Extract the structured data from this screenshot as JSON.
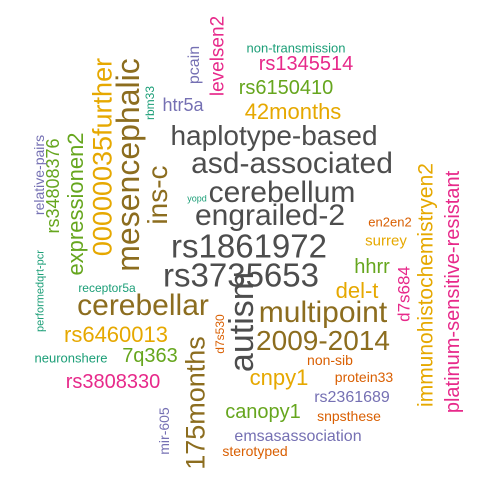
{
  "colors": {
    "gray": "#4d4d4d",
    "brown": "#8c6d1f",
    "gold": "#e6a800",
    "green": "#66a61e",
    "magenta": "#e7298a",
    "orange": "#d95f02",
    "purple": "#7570b3",
    "teal": "#1b9e77"
  },
  "words": [
    {
      "text": "autism",
      "color": "gray",
      "orientation": "vertical"
    },
    {
      "text": "rs3735653",
      "color": "gray",
      "orientation": "horizontal"
    },
    {
      "text": "rs1861972",
      "color": "gray",
      "orientation": "horizontal"
    },
    {
      "text": "engrailed-2",
      "color": "gray",
      "orientation": "horizontal"
    },
    {
      "text": "cerebellum",
      "color": "gray",
      "orientation": "horizontal"
    },
    {
      "text": "asd-associated",
      "color": "gray",
      "orientation": "horizontal"
    },
    {
      "text": "haplotype-based",
      "color": "gray",
      "orientation": "horizontal"
    },
    {
      "text": "mesencephalic",
      "color": "brown",
      "orientation": "vertical"
    },
    {
      "text": "multipoint",
      "color": "brown",
      "orientation": "horizontal"
    },
    {
      "text": "2009-2014",
      "color": "brown",
      "orientation": "horizontal"
    },
    {
      "text": "cerebellar",
      "color": "brown",
      "orientation": "horizontal"
    },
    {
      "text": "175months",
      "color": "brown",
      "orientation": "vertical"
    },
    {
      "text": "ins-c",
      "color": "brown",
      "orientation": "vertical"
    },
    {
      "text": "00000035further",
      "color": "gold",
      "orientation": "vertical"
    },
    {
      "text": "immunohistochemistryen2",
      "color": "gold",
      "orientation": "vertical"
    },
    {
      "text": "42months",
      "color": "gold",
      "orientation": "horizontal"
    },
    {
      "text": "del-t",
      "color": "gold",
      "orientation": "horizontal"
    },
    {
      "text": "rs6460013",
      "color": "gold",
      "orientation": "horizontal"
    },
    {
      "text": "cnpy1",
      "color": "gold",
      "orientation": "horizontal"
    },
    {
      "text": "surrey",
      "color": "gold",
      "orientation": "horizontal"
    },
    {
      "text": "expressionen2",
      "color": "green",
      "orientation": "vertical"
    },
    {
      "text": "rs34808376",
      "color": "green",
      "orientation": "vertical"
    },
    {
      "text": "rs6150410",
      "color": "green",
      "orientation": "horizontal"
    },
    {
      "text": "7q363",
      "color": "green",
      "orientation": "horizontal"
    },
    {
      "text": "canopy1",
      "color": "green",
      "orientation": "horizontal"
    },
    {
      "text": "hhrr",
      "color": "green",
      "orientation": "horizontal"
    },
    {
      "text": "platinum-sensitive-resistant",
      "color": "magenta",
      "orientation": "vertical"
    },
    {
      "text": "levelsen2",
      "color": "magenta",
      "orientation": "vertical"
    },
    {
      "text": "rs1345514",
      "color": "magenta",
      "orientation": "horizontal"
    },
    {
      "text": "rs3808330",
      "color": "magenta",
      "orientation": "horizontal"
    },
    {
      "text": "d7s684",
      "color": "magenta",
      "orientation": "vertical"
    },
    {
      "text": "en2en2",
      "color": "orange",
      "orientation": "horizontal"
    },
    {
      "text": "protein33",
      "color": "orange",
      "orientation": "horizontal"
    },
    {
      "text": "non-sib",
      "color": "orange",
      "orientation": "horizontal"
    },
    {
      "text": "snpsthese",
      "color": "orange",
      "orientation": "horizontal"
    },
    {
      "text": "sterotyped",
      "color": "orange",
      "orientation": "horizontal"
    },
    {
      "text": "d7s530",
      "color": "orange",
      "orientation": "vertical"
    },
    {
      "text": "htr5a",
      "color": "purple",
      "orientation": "horizontal"
    },
    {
      "text": "pcain",
      "color": "purple",
      "orientation": "vertical"
    },
    {
      "text": "relative-pairs",
      "color": "purple",
      "orientation": "vertical"
    },
    {
      "text": "rs2361689",
      "color": "purple",
      "orientation": "horizontal"
    },
    {
      "text": "emsasassociation",
      "color": "purple",
      "orientation": "horizontal"
    },
    {
      "text": "mir-605",
      "color": "purple",
      "orientation": "vertical"
    },
    {
      "text": "non-transmission",
      "color": "teal",
      "orientation": "horizontal"
    },
    {
      "text": "rbm33",
      "color": "teal",
      "orientation": "vertical"
    },
    {
      "text": "yopd",
      "color": "teal",
      "orientation": "horizontal"
    },
    {
      "text": "performedqrt-pcr",
      "color": "teal",
      "orientation": "vertical"
    },
    {
      "text": "receptor5a",
      "color": "teal",
      "orientation": "horizontal"
    },
    {
      "text": "neuronshere",
      "color": "teal",
      "orientation": "horizontal"
    }
  ]
}
